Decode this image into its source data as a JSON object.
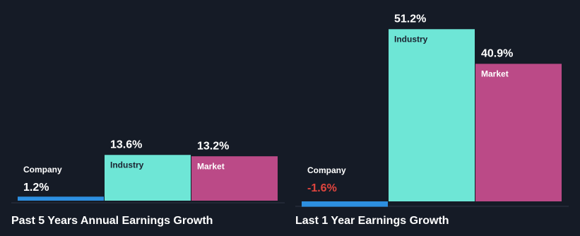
{
  "chart_data": [
    {
      "type": "bar",
      "title": "Past 5 Years Annual Earnings Growth",
      "categories": [
        "Company",
        "Industry",
        "Market"
      ],
      "values": [
        1.2,
        13.6,
        13.2
      ],
      "value_labels": [
        "1.2%",
        "13.6%",
        "13.2%"
      ],
      "colors": [
        "#2d8fe0",
        "#6ee6d6",
        "#bb4a87"
      ],
      "negative_color": "#e0453e"
    },
    {
      "type": "bar",
      "title": "Last 1 Year Earnings Growth",
      "categories": [
        "Company",
        "Industry",
        "Market"
      ],
      "values": [
        -1.6,
        51.2,
        40.9
      ],
      "value_labels": [
        "-1.6%",
        "51.2%",
        "40.9%"
      ],
      "colors": [
        "#2d8fe0",
        "#6ee6d6",
        "#bb4a87"
      ],
      "negative_color": "#e0453e"
    }
  ]
}
